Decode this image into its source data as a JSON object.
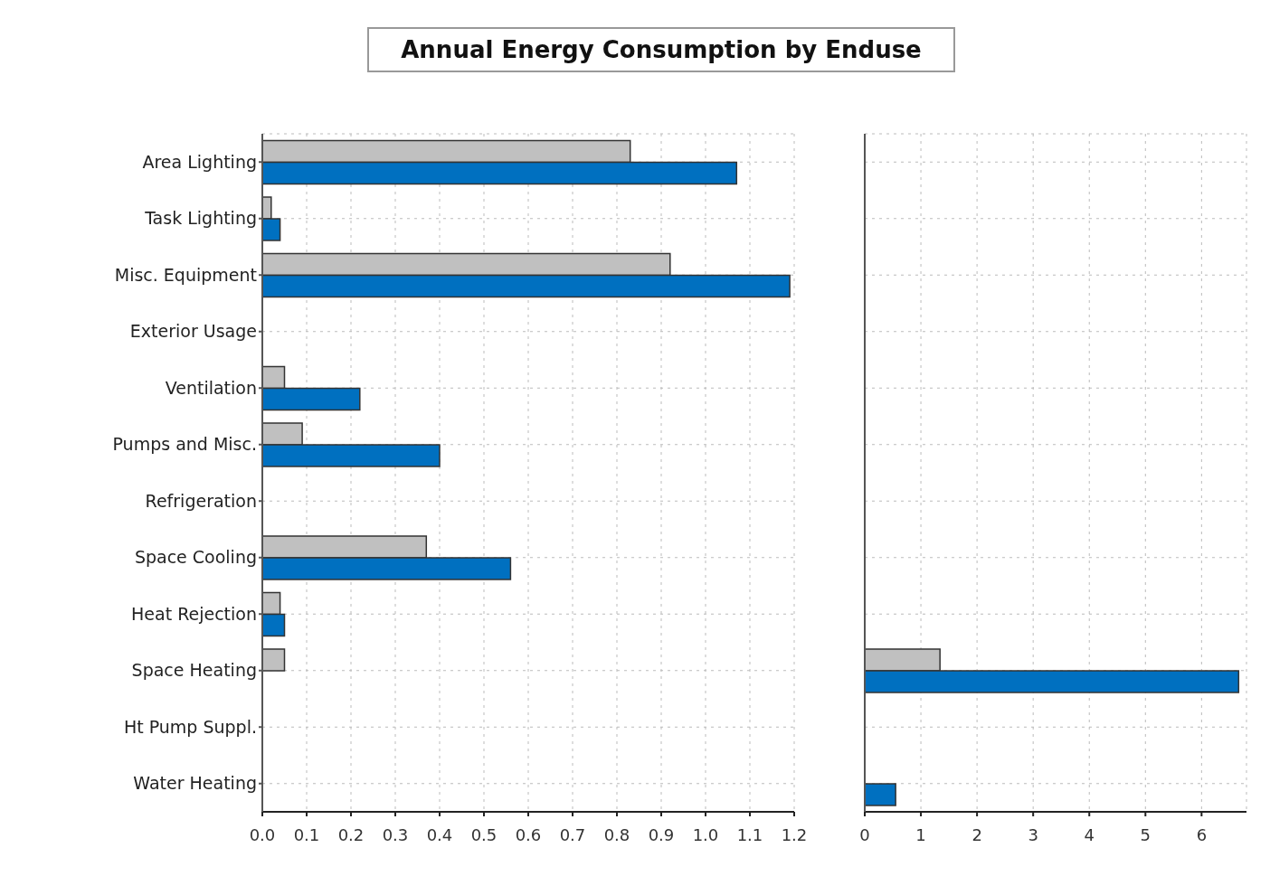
{
  "chart_data": [
    {
      "type": "bar",
      "title": "Annual Energy Consumption by Enduse",
      "orientation": "horizontal",
      "categories": [
        "Area Lighting",
        "Task Lighting",
        "Misc. Equipment",
        "Exterior Usage",
        "Ventilation",
        "Pumps and Misc.",
        "Refrigeration",
        "Space Cooling",
        "Heat Rejection",
        "Space Heating",
        "Ht Pump Suppl.",
        "Water Heating"
      ],
      "series": [
        {
          "color": "#c0c0c0",
          "values": [
            0.83,
            0.02,
            0.92,
            0,
            0.05,
            0.09,
            0,
            0.37,
            0.04,
            0.05,
            0,
            0
          ]
        },
        {
          "color": "#0070c0",
          "values": [
            1.07,
            0.04,
            1.19,
            0,
            0.22,
            0.4,
            0,
            0.56,
            0.05,
            0,
            0,
            0
          ]
        }
      ],
      "xlim": [
        0,
        1.2
      ],
      "xticks": [
        {
          "value": 0,
          "label": "0.0"
        },
        0.1,
        0.2,
        0.3,
        0.4,
        0.5,
        0.6,
        0.7,
        0.8,
        0.9,
        {
          "value": 1,
          "label": "1.0"
        },
        1.1,
        1.2
      ],
      "grid": true
    },
    {
      "type": "bar",
      "orientation": "horizontal",
      "categories": [
        null,
        null,
        null,
        null,
        null,
        null,
        null,
        null,
        null,
        null,
        null,
        null
      ],
      "series": [
        {
          "color": "#c0c0c0",
          "values": [
            0,
            0,
            0,
            0,
            0,
            0,
            0,
            0,
            0,
            1.34,
            0,
            0
          ]
        },
        {
          "color": "#0070c0",
          "values": [
            0,
            0,
            0,
            0,
            0,
            0,
            0,
            0,
            0,
            6.66,
            0,
            0.55
          ]
        }
      ],
      "xlim": [
        0,
        6.8
      ],
      "xticks": [
        0,
        1,
        2,
        3,
        4,
        5,
        6
      ],
      "grid": true,
      "tick_labels": "x"
    }
  ]
}
